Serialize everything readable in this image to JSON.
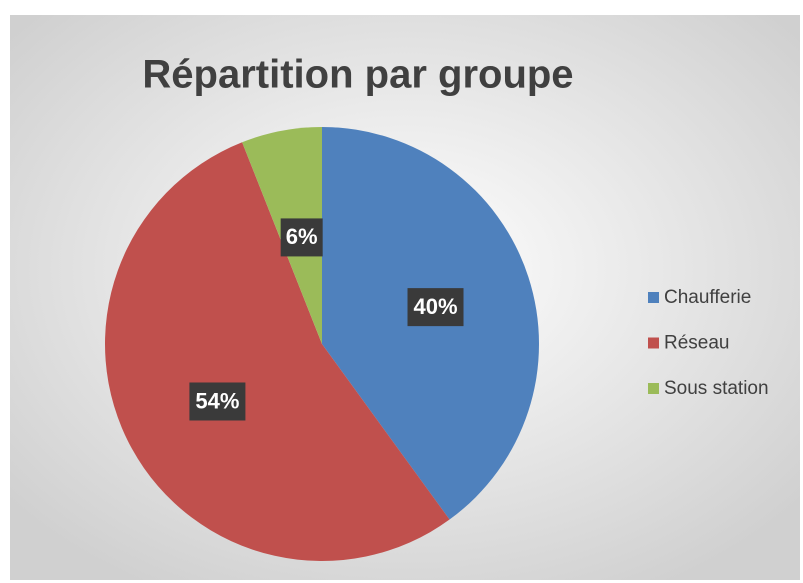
{
  "chart_data": {
    "type": "pie",
    "title": "Répartition par groupe",
    "categories": [
      "Chaufferie",
      "Réseau",
      "Sous station"
    ],
    "values": [
      40,
      54,
      6
    ],
    "value_labels": [
      "40%",
      "54%",
      "6%"
    ],
    "colors": [
      "#4f81bd",
      "#c0504d",
      "#9bbb59"
    ],
    "legend": "right"
  }
}
